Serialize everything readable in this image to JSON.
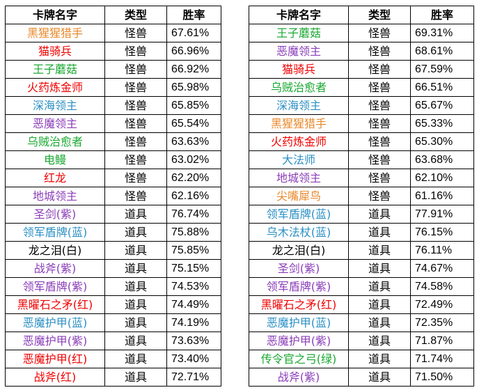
{
  "headers": {
    "name": "卡牌名字",
    "type": "类型",
    "rate": "胜率"
  },
  "colors": {
    "orange": "#e8892a",
    "red": "#f00000",
    "green": "#1aa832",
    "blue": "#2a8fc4",
    "purple": "#8a3db8",
    "black": "#000000"
  },
  "left_rows": [
    {
      "name": "黑猩猩猎手",
      "color": "orange",
      "type": "怪兽",
      "rate": "67.61%"
    },
    {
      "name": "猫骑兵",
      "color": "red",
      "type": "怪兽",
      "rate": "66.96%"
    },
    {
      "name": "王子蘑菇",
      "color": "green",
      "type": "怪兽",
      "rate": "66.92%"
    },
    {
      "name": "火药炼金师",
      "color": "red",
      "type": "怪兽",
      "rate": "65.98%"
    },
    {
      "name": "深海领主",
      "color": "blue",
      "type": "怪兽",
      "rate": "65.85%"
    },
    {
      "name": "恶魔领主",
      "color": "purple",
      "type": "怪兽",
      "rate": "65.54%"
    },
    {
      "name": "乌贼治愈者",
      "color": "green",
      "type": "怪兽",
      "rate": "63.63%"
    },
    {
      "name": "电鳗",
      "color": "green",
      "type": "怪兽",
      "rate": "63.02%"
    },
    {
      "name": "红龙",
      "color": "red",
      "type": "怪兽",
      "rate": "62.20%"
    },
    {
      "name": "地城领主",
      "color": "purple",
      "type": "怪兽",
      "rate": "62.16%"
    },
    {
      "name": "圣剑(紫)",
      "color": "purple",
      "type": "道具",
      "rate": "76.74%"
    },
    {
      "name": "领军盾牌(蓝)",
      "color": "blue",
      "type": "道具",
      "rate": "75.88%"
    },
    {
      "name": "龙之泪(白)",
      "color": "black",
      "type": "道具",
      "rate": "75.85%"
    },
    {
      "name": "战斧(紫)",
      "color": "purple",
      "type": "道具",
      "rate": "75.15%"
    },
    {
      "name": "领军盾牌(紫)",
      "color": "purple",
      "type": "道具",
      "rate": "74.53%"
    },
    {
      "name": "黑曜石之矛(红)",
      "color": "red",
      "type": "道具",
      "rate": "74.49%"
    },
    {
      "name": "恶魔护甲(蓝)",
      "color": "blue",
      "type": "道具",
      "rate": "74.19%"
    },
    {
      "name": "恶魔护甲(紫)",
      "color": "purple",
      "type": "道具",
      "rate": "73.63%"
    },
    {
      "name": "恶魔护甲(红)",
      "color": "red",
      "type": "道具",
      "rate": "73.40%"
    },
    {
      "name": "战斧(红)",
      "color": "red",
      "type": "道具",
      "rate": "72.71%"
    }
  ],
  "right_rows": [
    {
      "name": "王子蘑菇",
      "color": "green",
      "type": "怪兽",
      "rate": "69.31%"
    },
    {
      "name": "恶魔领主",
      "color": "purple",
      "type": "怪兽",
      "rate": "68.61%"
    },
    {
      "name": "猫骑兵",
      "color": "red",
      "type": "怪兽",
      "rate": "67.59%"
    },
    {
      "name": "乌贼治愈者",
      "color": "green",
      "type": "怪兽",
      "rate": "66.51%"
    },
    {
      "name": "深海领主",
      "color": "blue",
      "type": "怪兽",
      "rate": "65.67%"
    },
    {
      "name": "黑猩猩猎手",
      "color": "orange",
      "type": "怪兽",
      "rate": "65.33%"
    },
    {
      "name": "火药炼金师",
      "color": "red",
      "type": "怪兽",
      "rate": "65.30%"
    },
    {
      "name": "大法师",
      "color": "blue",
      "type": "怪兽",
      "rate": "63.68%"
    },
    {
      "name": "地城领主",
      "color": "purple",
      "type": "怪兽",
      "rate": "62.10%"
    },
    {
      "name": "尖嘴犀鸟",
      "color": "orange",
      "type": "怪兽",
      "rate": "61.16%"
    },
    {
      "name": "领军盾牌(蓝)",
      "color": "blue",
      "type": "道具",
      "rate": "77.91%"
    },
    {
      "name": "乌木法杖(蓝)",
      "color": "blue",
      "type": "道具",
      "rate": "76.15%"
    },
    {
      "name": "龙之泪(白)",
      "color": "black",
      "type": "道具",
      "rate": "76.11%"
    },
    {
      "name": "圣剑(紫)",
      "color": "purple",
      "type": "道具",
      "rate": "74.67%"
    },
    {
      "name": "领军盾牌(紫)",
      "color": "purple",
      "type": "道具",
      "rate": "74.58%"
    },
    {
      "name": "黑曜石之矛(红)",
      "color": "red",
      "type": "道具",
      "rate": "72.49%"
    },
    {
      "name": "恶魔护甲(蓝)",
      "color": "blue",
      "type": "道具",
      "rate": "72.35%"
    },
    {
      "name": "恶魔护甲(紫)",
      "color": "purple",
      "type": "道具",
      "rate": "71.87%"
    },
    {
      "name": "传令官之弓(绿)",
      "color": "green",
      "type": "道具",
      "rate": "71.74%"
    },
    {
      "name": "战斧(紫)",
      "color": "purple",
      "type": "道具",
      "rate": "71.50%"
    }
  ]
}
